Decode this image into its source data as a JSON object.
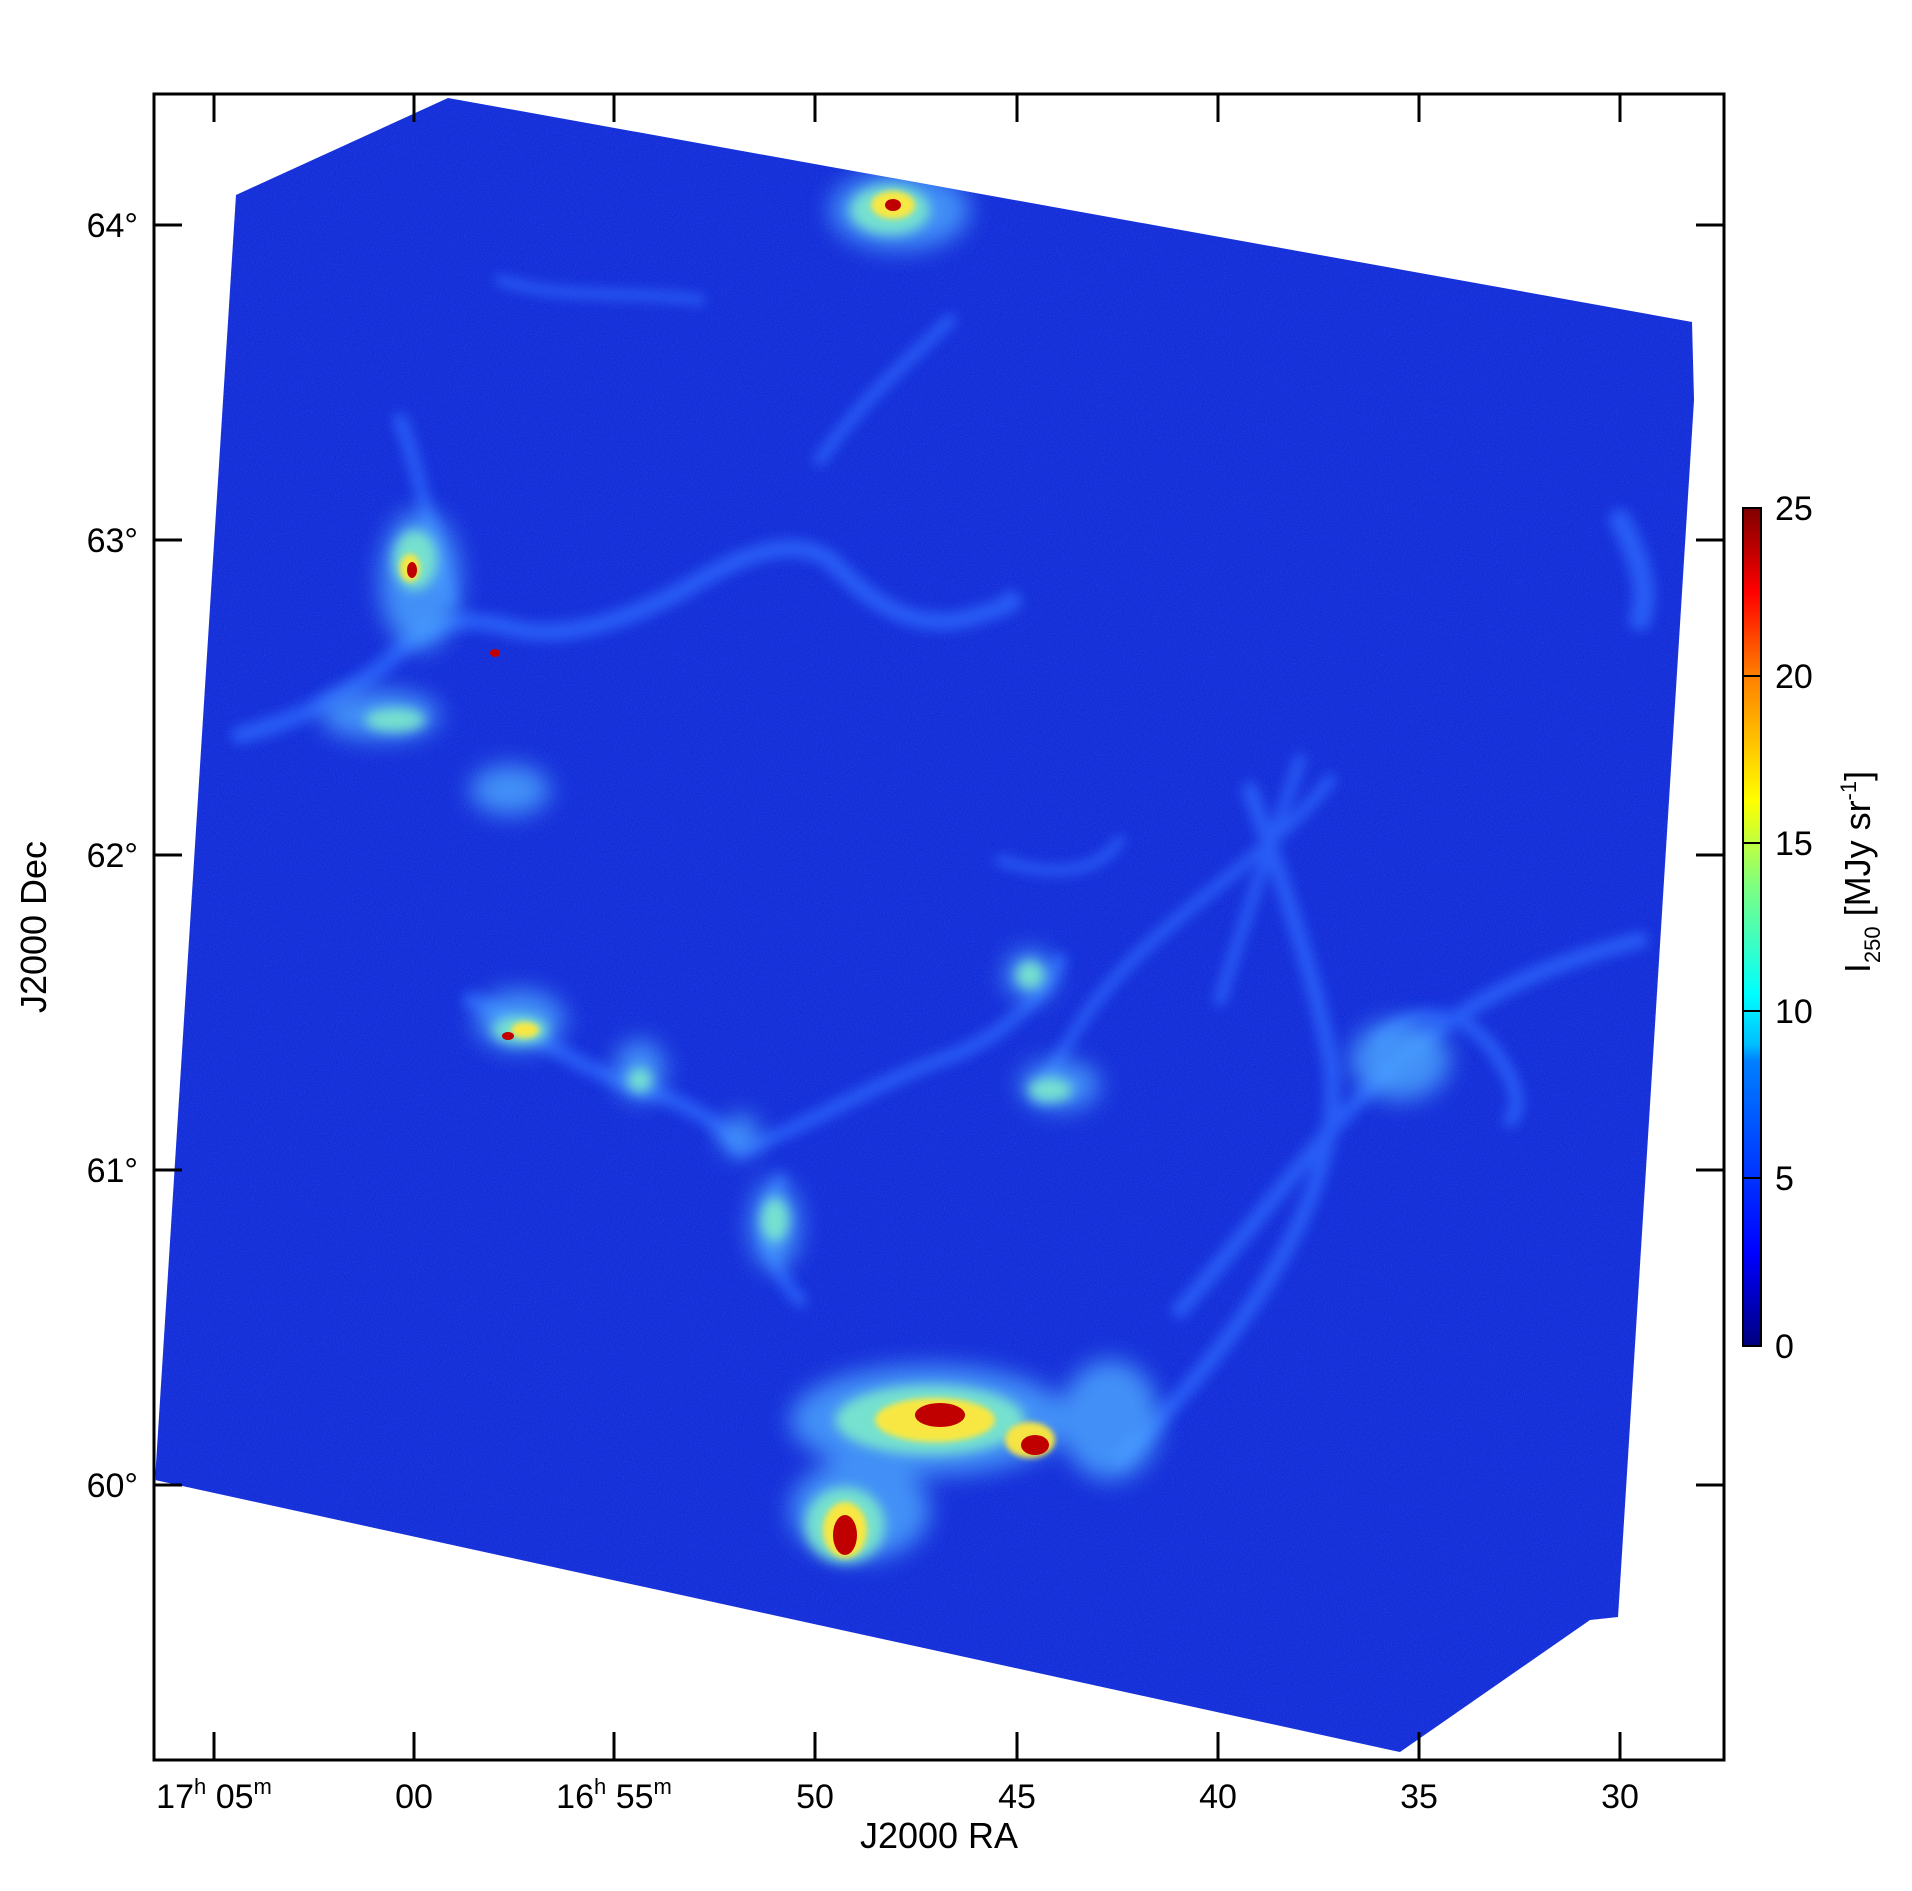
{
  "chart_data": {
    "type": "heatmap",
    "xlabel": "J2000 RA",
    "ylabel": "J2000 Dec",
    "x_ticks": [
      {
        "h": "17",
        "m": "05",
        "label": "",
        "full": true
      },
      {
        "label": "00"
      },
      {
        "h": "16",
        "m": "55",
        "label": "",
        "full": true
      },
      {
        "label": "50"
      },
      {
        "label": "45"
      },
      {
        "label": "40"
      },
      {
        "label": "35"
      },
      {
        "label": "30"
      }
    ],
    "y_ticks": [
      "64°",
      "63°",
      "62°",
      "61°",
      "60°"
    ],
    "colorbar": {
      "label_main": "I",
      "label_sub": "250",
      "label_unit_pre": " [MJy sr",
      "label_unit_sup": "-1",
      "label_unit_post": "]",
      "ticks": [
        "25",
        "20",
        "15",
        "10",
        "5",
        "0"
      ],
      "range": [
        0,
        25
      ],
      "colormap": [
        "#00007f",
        "#0000ff",
        "#007fff",
        "#00ffff",
        "#7fff7f",
        "#ffff00",
        "#ff7f00",
        "#ff0000",
        "#7f0000"
      ]
    },
    "map_background": "#0a1fd0",
    "emission_color_low": "#2f6bff",
    "emission_color_mid": "#7fe6ff",
    "emission_color_high": "#ffef40",
    "emission_color_peak": "#b00000"
  }
}
